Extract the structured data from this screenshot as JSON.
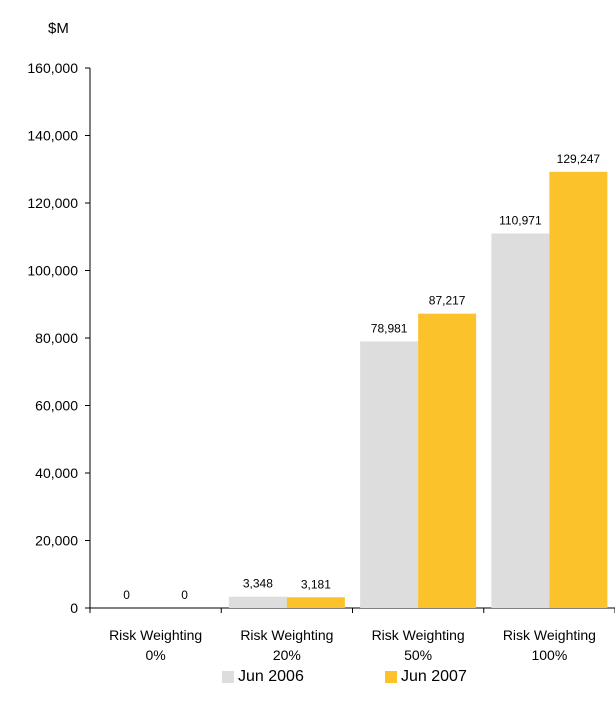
{
  "chart_data": {
    "type": "bar",
    "unit_label": "$M",
    "categories": [
      [
        "Risk Weighting",
        "0%"
      ],
      [
        "Risk Weighting",
        "20%"
      ],
      [
        "Risk Weighting",
        "50%"
      ],
      [
        "Risk Weighting",
        "100%"
      ]
    ],
    "series": [
      {
        "name": "Jun 2006",
        "color": "#dddddd",
        "values": [
          0,
          3348,
          78981,
          110971
        ],
        "labels": [
          "0",
          "3,348",
          "78,981",
          "110,971"
        ]
      },
      {
        "name": "Jun 2007",
        "color": "#fcc22c",
        "values": [
          0,
          3181,
          87217,
          129247
        ],
        "labels": [
          "0",
          "3,181",
          "87,217",
          "129,247"
        ]
      }
    ],
    "ylim": [
      0,
      160000
    ],
    "yticks": [
      0,
      20000,
      40000,
      60000,
      80000,
      100000,
      120000,
      140000,
      160000
    ],
    "ytick_labels": [
      "0",
      "20,000",
      "40,000",
      "60,000",
      "80,000",
      "100,000",
      "120,000",
      "140,000",
      "160,000"
    ],
    "grid": false,
    "legend_position": "bottom"
  }
}
